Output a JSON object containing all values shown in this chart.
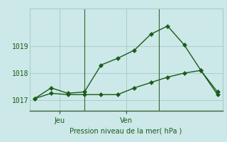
{
  "xlabel": "Pression niveau de la mer( hPa )",
  "background_color": "#cce8e8",
  "plot_bg_color": "#cce8e8",
  "grid_color": "#aacccc",
  "line_color": "#1a5c1a",
  "line1_x": [
    0,
    1,
    2,
    3,
    4,
    5,
    6,
    7,
    8,
    9,
    10,
    11
  ],
  "line1_y": [
    1017.05,
    1017.45,
    1017.25,
    1017.3,
    1018.3,
    1018.55,
    1018.85,
    1019.45,
    1019.75,
    1019.05,
    1018.1,
    1017.3
  ],
  "line2_x": [
    0,
    1,
    2,
    3,
    4,
    5,
    6,
    7,
    8,
    9,
    10,
    11
  ],
  "line2_y": [
    1017.05,
    1017.25,
    1017.2,
    1017.2,
    1017.2,
    1017.2,
    1017.45,
    1017.65,
    1017.85,
    1018.0,
    1018.1,
    1017.2
  ],
  "yticks": [
    1017,
    1018,
    1019
  ],
  "ylim": [
    1016.6,
    1020.4
  ],
  "xlim": [
    -0.3,
    11.3
  ],
  "vline_x1": 3.0,
  "vline_x2": 7.5,
  "xtick_jeu_x": 1.5,
  "xtick_ven_x": 5.5,
  "markersize": 3.0,
  "linewidth": 1.0
}
